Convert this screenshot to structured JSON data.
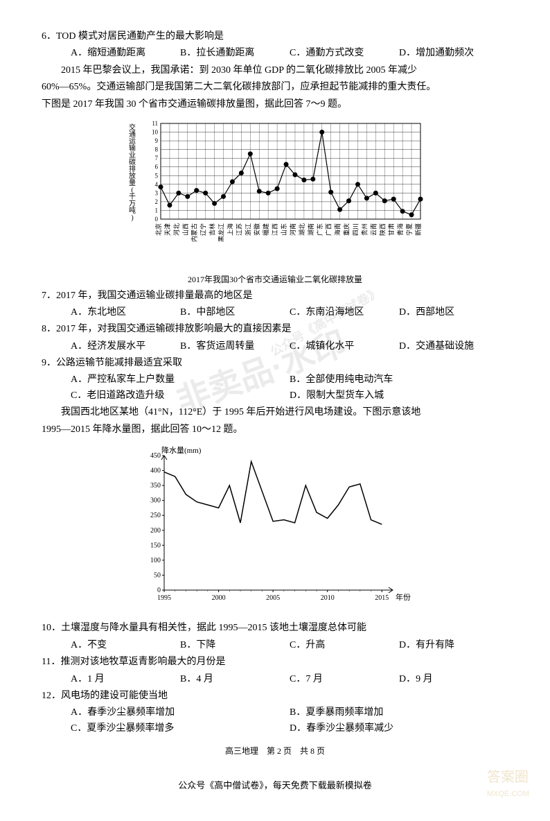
{
  "q6": {
    "text": "6．TOD 模式对居民通勤产生的最大影响是",
    "opts": [
      "A．缩短通勤距离",
      "B．拉长通勤距离",
      "C．通勤方式改变",
      "D．增加通勤频次"
    ]
  },
  "passage1": {
    "p1": "2015 年巴黎会议上，我国承诺：到 2030 年单位 GDP 的二氧化碳排放比 2005 年减少",
    "p2": "60%—65%。交通运输部门是我国第二大二氧化碳排放部门，应承担起节能减排的重大责任。",
    "p3": "下图是 2017 年我国 30 个省市交通运输碳排放量图，据此回答 7～9 题。"
  },
  "chart1": {
    "type": "line",
    "ylabel": "交通运输业碳排放量(千万吨)",
    "caption": "2017年我国30个省市交通运输业二氧化碳排放量",
    "yticks": [
      0,
      1,
      2,
      3,
      4,
      5,
      6,
      7,
      8,
      9,
      10,
      11
    ],
    "ylim": [
      0,
      11
    ],
    "categories": [
      "北京",
      "天津",
      "河北",
      "山西",
      "内蒙古",
      "辽宁",
      "吉林",
      "黑龙江",
      "上海",
      "江苏",
      "浙江",
      "安徽",
      "福建",
      "江西",
      "山东",
      "河南",
      "湖北",
      "湖南",
      "广东",
      "广西",
      "海南",
      "重庆",
      "四川",
      "贵州",
      "云南",
      "陕西",
      "甘肃",
      "青海",
      "宁夏",
      "新疆"
    ],
    "values": [
      3.7,
      1.6,
      3.0,
      2.6,
      3.3,
      3.0,
      1.8,
      2.6,
      4.3,
      5.3,
      7.5,
      3.2,
      3.0,
      3.5,
      6.3,
      5.1,
      4.5,
      4.6,
      10.0,
      3.1,
      1.1,
      2.1,
      4.0,
      2.4,
      3.0,
      2.1,
      2.3,
      0.9,
      0.5,
      2.3
    ],
    "line_color": "#000000",
    "marker_color": "#000000",
    "line_width": 1.2,
    "marker_size": 3.5,
    "grid_color": "#000000",
    "fontsize_axis": 10,
    "fontsize_tick": 9
  },
  "q7": {
    "text": "7．2017 年，我国交通运输业碳排量最高的地区是",
    "opts": [
      "A．东北地区",
      "B．中部地区",
      "C．东南沿海地区",
      "D．西部地区"
    ]
  },
  "q8": {
    "text": "8．2017 年，对我国交通运输碳排放影响最大的直接因素是",
    "opts": [
      "A．经济发展水平",
      "B．客货运周转量",
      "C．城镇化水平",
      "D．交通基础设施"
    ]
  },
  "q9": {
    "text": "9．公路运输节能减排最适宜采取",
    "opts": [
      "A．严控私家车上户数量",
      "B．全部使用纯电动汽车",
      "C．老旧道路改造升级",
      "D．限制大型货车入城"
    ]
  },
  "passage2": {
    "p1": "我国西北地区某地（41°N，112°E）于 1995 年后开始进行风电场建设。下图示意该地",
    "p2": "1995—2015 年降水量图，据此回答 10～12 题。"
  },
  "chart2": {
    "type": "line",
    "ylabel": "降水量(mm)",
    "xlabel": "年份",
    "yticks": [
      0,
      50,
      100,
      150,
      200,
      250,
      300,
      350,
      400,
      450
    ],
    "ylim": [
      0,
      450
    ],
    "xticks": [
      1995,
      2000,
      2005,
      2010,
      2015
    ],
    "xlim": [
      1995,
      2016
    ],
    "x": [
      1995,
      1996,
      1997,
      1998,
      1999,
      2000,
      2001,
      2002,
      2003,
      2004,
      2005,
      2006,
      2007,
      2008,
      2009,
      2010,
      2011,
      2012,
      2013,
      2014,
      2015
    ],
    "y": [
      395,
      380,
      320,
      295,
      285,
      275,
      350,
      225,
      430,
      330,
      230,
      235,
      225,
      350,
      260,
      240,
      285,
      345,
      355,
      235,
      220
    ],
    "line_color": "#000000",
    "line_width": 1.5,
    "grid_color": "#000000",
    "fontsize_axis": 11,
    "fontsize_tick": 10
  },
  "q10": {
    "text": "10．土壤湿度与降水量具有相关性，据此 1995—2015 该地土壤湿度总体可能",
    "opts": [
      "A．不变",
      "B．下降",
      "C．升高",
      "D．有升有降"
    ]
  },
  "q11": {
    "text": "11．推测对该地牧草返青影响最大的月份是",
    "opts": [
      "A．1 月",
      "B．4 月",
      "C．7 月",
      "D．9 月"
    ]
  },
  "q12": {
    "text": "12．风电场的建设可能使当地",
    "opts": [
      "A．春季沙尘暴频率增加",
      "B．夏季暴雨频率增加",
      "C．夏季沙尘暴频率增多",
      "D．春季沙尘暴频率减少"
    ]
  },
  "footer": "高三地理　第 2 页　共 8 页",
  "bottom_note": "公众号《高中僧试卷》，每天免费下载最新模拟卷",
  "watermark": {
    "wm_small": "公众号《高中僧试卷》",
    "wm_big": "非卖品·水印"
  },
  "answer_logo": "答案圈",
  "answer_url": "MXQE.COM"
}
